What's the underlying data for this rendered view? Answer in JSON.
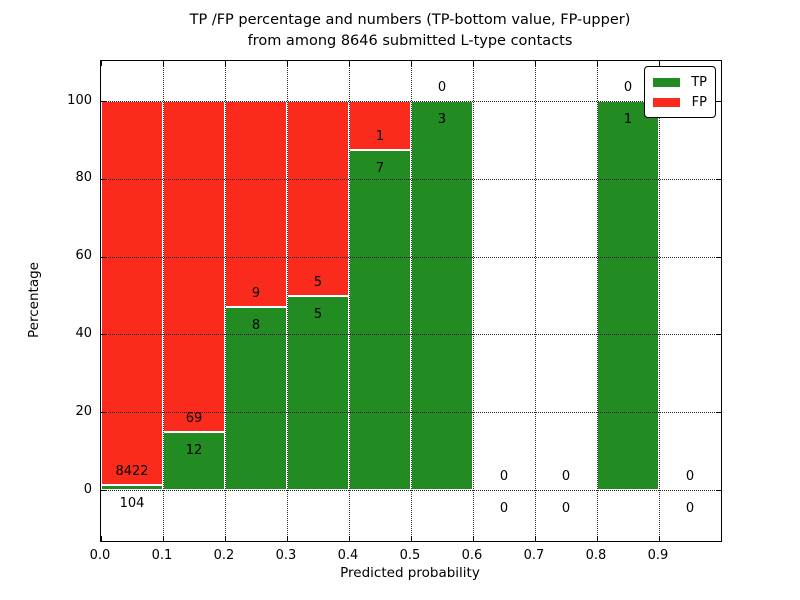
{
  "figure": {
    "title_line1": "TP /FP percentage and numbers (TP-bottom value, FP-upper)",
    "title_line2": "from among 8646 submitted L-type contacts"
  },
  "chart_data": {
    "type": "bar",
    "variant": "stacked-percentage",
    "title": "TP /FP percentage and numbers (TP-bottom value, FP-upper) from among 8646 submitted L-type contacts",
    "xlabel": "Predicted probability",
    "ylabel": "Percentage",
    "xlim": [
      0.0,
      1.0
    ],
    "ylim": [
      -13.1,
      110.3
    ],
    "x_tick_values": [
      0.0,
      0.1,
      0.2,
      0.3,
      0.4,
      0.5,
      0.6,
      0.7,
      0.8,
      0.9
    ],
    "x_tick_labels": [
      "0.0",
      "0.1",
      "0.2",
      "0.3",
      "0.4",
      "0.5",
      "0.6",
      "0.7",
      "0.8",
      "0.9"
    ],
    "y_tick_values": [
      0,
      20,
      40,
      60,
      80,
      100
    ],
    "y_tick_labels": [
      "0",
      "20",
      "40",
      "60",
      "80",
      "100"
    ],
    "grid": "dotted-both-axes",
    "colors": {
      "tp": "#228b22",
      "fp": "#fa2b1d",
      "axes": "#000000",
      "background": "#ffffff"
    },
    "legend": {
      "position": "upper-right",
      "entries": [
        {
          "label": "TP",
          "color": "#228b22"
        },
        {
          "label": "FP",
          "color": "#fa2b1d"
        }
      ]
    },
    "annotation_rule": "TP count below segment boundary, FP count above segment boundary",
    "total_contacts": 8646,
    "bins": [
      {
        "range": [
          0.0,
          0.1
        ],
        "tp": 104,
        "fp": 8422,
        "tp_pct": 1.22
      },
      {
        "range": [
          0.1,
          0.2
        ],
        "tp": 12,
        "fp": 69,
        "tp_pct": 14.81
      },
      {
        "range": [
          0.2,
          0.3
        ],
        "tp": 8,
        "fp": 9,
        "tp_pct": 47.06
      },
      {
        "range": [
          0.3,
          0.4
        ],
        "tp": 5,
        "fp": 5,
        "tp_pct": 50.0
      },
      {
        "range": [
          0.4,
          0.5
        ],
        "tp": 7,
        "fp": 1,
        "tp_pct": 87.5
      },
      {
        "range": [
          0.5,
          0.6
        ],
        "tp": 3,
        "fp": 0,
        "tp_pct": 100.0
      },
      {
        "range": [
          0.6,
          0.7
        ],
        "tp": 0,
        "fp": 0,
        "tp_pct": null
      },
      {
        "range": [
          0.7,
          0.8
        ],
        "tp": 0,
        "fp": 0,
        "tp_pct": null
      },
      {
        "range": [
          0.8,
          0.9
        ],
        "tp": 1,
        "fp": 0,
        "tp_pct": 100.0
      },
      {
        "range": [
          0.9,
          1.0
        ],
        "tp": 0,
        "fp": 0,
        "tp_pct": null
      }
    ]
  }
}
